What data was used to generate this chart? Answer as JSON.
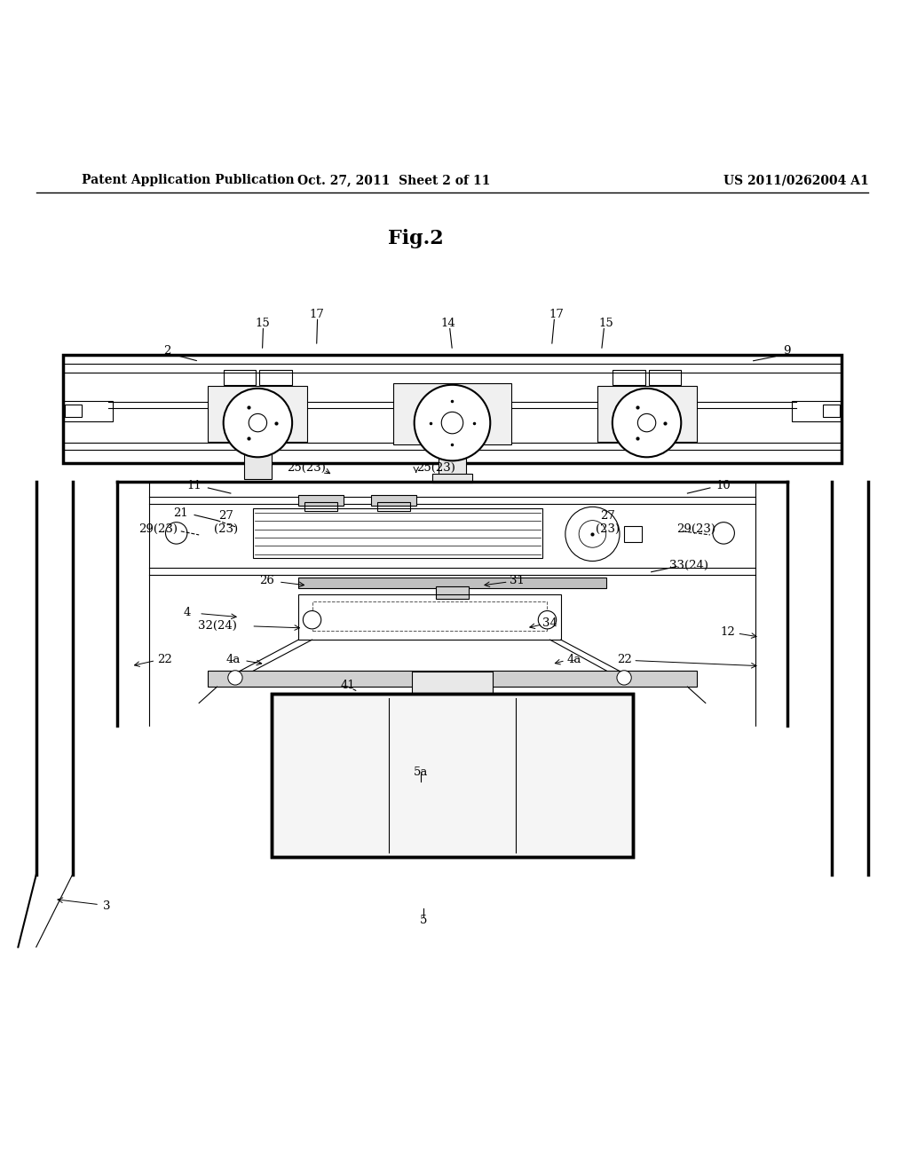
{
  "bg_color": "#ffffff",
  "line_color": "#000000",
  "header_left": "Patent Application Publication",
  "header_mid": "Oct. 27, 2011  Sheet 2 of 11",
  "header_right": "US 2011/0262004 A1",
  "fig_label": "Fig.2"
}
